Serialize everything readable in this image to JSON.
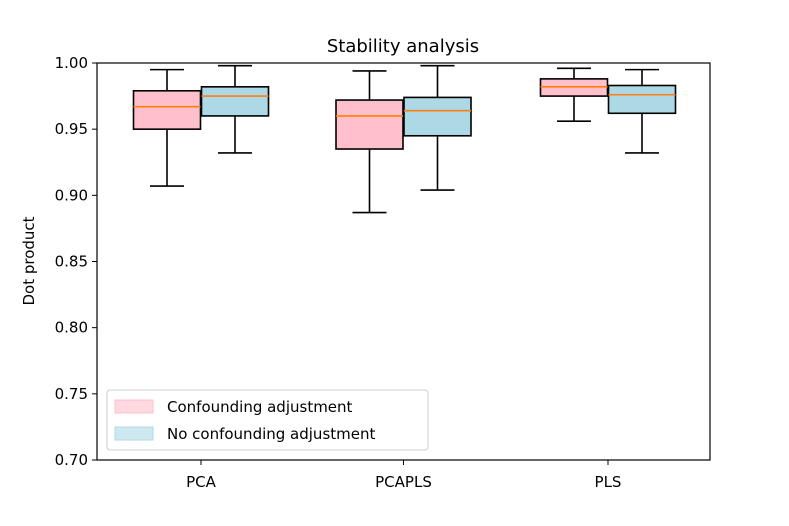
{
  "chart_data": {
    "type": "box",
    "title": "Stability analysis",
    "xlabel": "",
    "ylabel": "Dot product",
    "ylim": [
      0.7,
      1.0
    ],
    "yticks": [
      "0.70",
      "0.75",
      "0.80",
      "0.85",
      "0.90",
      "0.95",
      "1.00"
    ],
    "categories": [
      "PCA",
      "PCAPLS",
      "PLS"
    ],
    "series": [
      {
        "name": "Confounding adjustment",
        "color": "#ffc0cb",
        "boxes": [
          {
            "whislo": 0.907,
            "q1": 0.95,
            "med": 0.967,
            "q3": 0.979,
            "whishi": 0.995
          },
          {
            "whislo": 0.887,
            "q1": 0.935,
            "med": 0.96,
            "q3": 0.972,
            "whishi": 0.994
          },
          {
            "whislo": 0.956,
            "q1": 0.975,
            "med": 0.982,
            "q3": 0.988,
            "whishi": 0.996
          }
        ]
      },
      {
        "name": "No confounding adjustment",
        "color": "#add8e6",
        "boxes": [
          {
            "whislo": 0.932,
            "q1": 0.96,
            "med": 0.975,
            "q3": 0.982,
            "whishi": 0.998
          },
          {
            "whislo": 0.904,
            "q1": 0.945,
            "med": 0.964,
            "q3": 0.974,
            "whishi": 0.998
          },
          {
            "whislo": 0.932,
            "q1": 0.962,
            "med": 0.976,
            "q3": 0.983,
            "whishi": 0.995
          }
        ]
      }
    ],
    "median_color": "#ff7f0e",
    "legend": "lower-left",
    "grid": false
  }
}
